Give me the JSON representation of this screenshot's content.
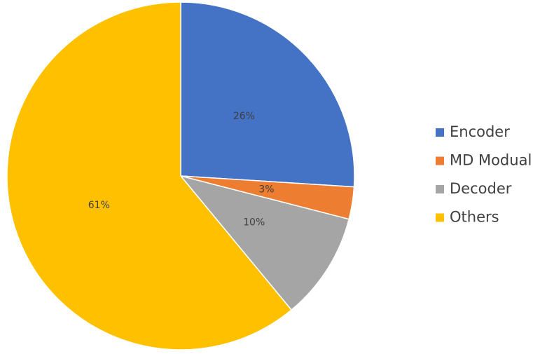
{
  "chart_data": {
    "type": "pie",
    "categories": [
      "Encoder",
      "MD Modual",
      "Decoder",
      "Others"
    ],
    "values": [
      26,
      3,
      10,
      61
    ],
    "value_labels": [
      "26%",
      "3%",
      "10%",
      "61%"
    ],
    "colors": [
      "#4472c4",
      "#ed7d31",
      "#a5a5a5",
      "#ffc000"
    ],
    "legend": "right"
  }
}
